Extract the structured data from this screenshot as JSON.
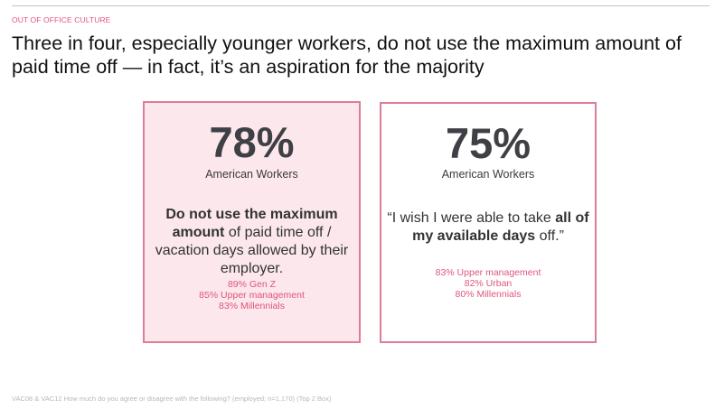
{
  "header": {
    "section_label": "OUT OF OFFICE CULTURE",
    "headline": "Three in four, especially younger workers, do not use the maximum amount of paid time off — in fact, it’s an aspiration for the majority"
  },
  "cards": [
    {
      "stat": "78%",
      "stat_label": "American Workers",
      "statement": {
        "bold": "Do not use the maximum amount",
        "rest": " of paid time off / vacation days allowed by their employer."
      },
      "breakdown": [
        "89% Gen Z",
        "85% Upper management",
        "83% Millennials"
      ]
    },
    {
      "stat": "75%",
      "stat_label": "American Workers",
      "statement": {
        "pre": "“I wish I were able to take ",
        "bold": "all of my available days",
        "post": " off.”"
      },
      "breakdown": [
        "83% Upper management",
        "82% Urban",
        "80% Millennials"
      ]
    }
  ],
  "footnote": "VAC08 & VAC12 How much do you agree or disagree with the following? (employed; n=1,170) (Top 2 Box)",
  "colors": {
    "accent": "#e0567b",
    "card_border": "#e07c95",
    "card_fill": "#fbe7ec",
    "stat_text": "#3f4045"
  }
}
